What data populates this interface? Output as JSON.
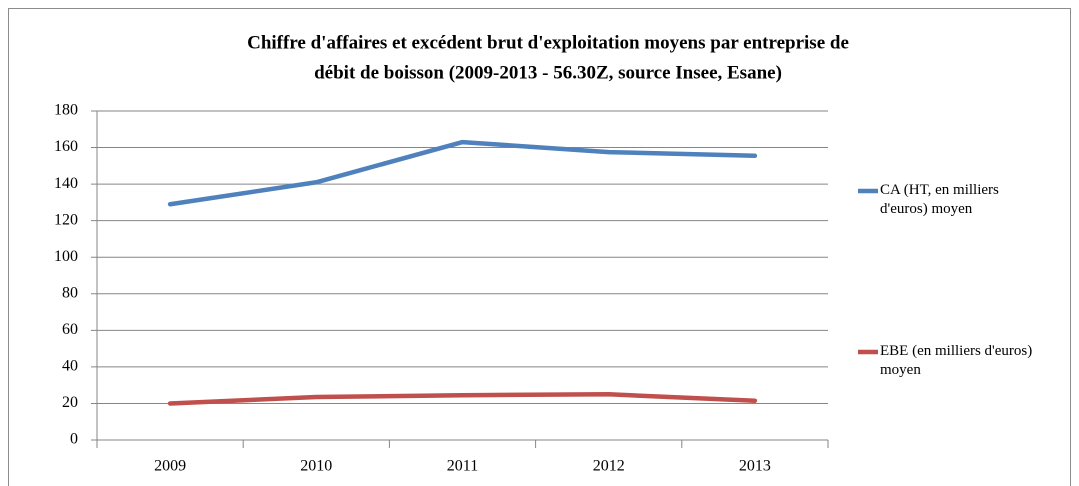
{
  "chart_data": {
    "type": "line",
    "title": [
      "Chiffre d'affaires et excédent brut d'exploitation moyens par entreprise de",
      "débit de boisson (2009-2013 - 56.30Z, source Insee, Esane)"
    ],
    "categories": [
      "2009",
      "2010",
      "2011",
      "2012",
      "2013"
    ],
    "series": [
      {
        "name": "CA (HT, en milliers d'euros) moyen",
        "color": "#4f81bd",
        "values": [
          129,
          141,
          163,
          157.5,
          155.5
        ]
      },
      {
        "name": "EBE (en milliers d'euros) moyen",
        "color": "#c0504d",
        "values": [
          20,
          23.5,
          24.5,
          25,
          21.5
        ]
      }
    ],
    "ylim": [
      0,
      180
    ],
    "yticks": [
      0,
      20,
      40,
      60,
      80,
      100,
      120,
      140,
      160,
      180
    ],
    "grid": true,
    "legend": "right"
  }
}
